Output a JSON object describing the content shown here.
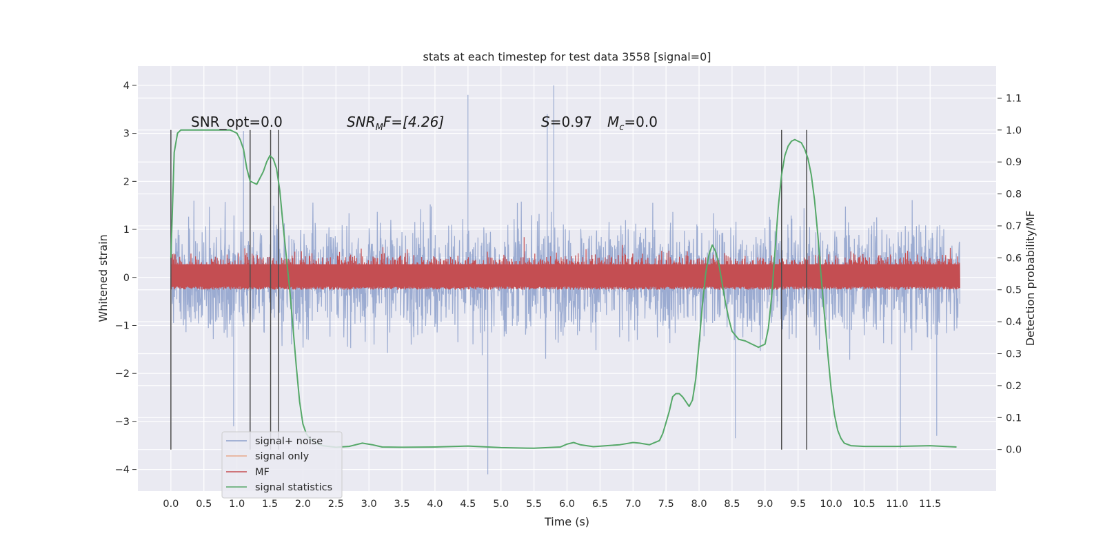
{
  "chart_data": {
    "type": "line",
    "title": "stats at each timestep for test data 3558 [signal=0]",
    "xlabel": "Time (s)",
    "ylabel": "Whitened strain",
    "y2label": "Detection probability/MF",
    "xlim": [
      -0.5,
      12.5
    ],
    "ylim": [
      -4.45,
      4.4
    ],
    "y2lim": [
      -0.13,
      1.2
    ],
    "x_ticks": [
      0.0,
      0.5,
      1.0,
      1.5,
      2.0,
      2.5,
      3.0,
      3.5,
      4.0,
      4.5,
      5.0,
      5.5,
      6.0,
      6.5,
      7.0,
      7.5,
      8.0,
      8.5,
      9.0,
      9.5,
      10.0,
      10.5,
      11.0,
      11.5
    ],
    "y_ticks": [
      -4,
      -3,
      -2,
      -1,
      0,
      1,
      2,
      3,
      4
    ],
    "y2_ticks": [
      0.0,
      0.1,
      0.2,
      0.3,
      0.4,
      0.5,
      0.6,
      0.7,
      0.8,
      0.9,
      1.0,
      1.1
    ],
    "grid": true,
    "legend_position": "lower-left",
    "annotations": {
      "snr_opt": "SNR_opt=0.0",
      "snr_mf_sym": "SNR",
      "snr_mf_sub": "M",
      "snr_mf_rest": "F=[4.26]",
      "stat_s_sym": "S",
      "stat_s_val": "=0.97",
      "stat_mc_sym": "M",
      "stat_mc_sub": "c",
      "stat_mc_val": "=0.0"
    },
    "markers_x": [
      0.0,
      1.2,
      1.51,
      1.63,
      9.25,
      9.63
    ],
    "series": [
      {
        "name": "signal+ noise",
        "color": "#8da0cb",
        "x_range": [
          0.0,
          11.95
        ],
        "envelope_mean": 0.0,
        "envelope_sigma": 0.9,
        "typical_range": [
          -2.2,
          2.2
        ],
        "extremes": [
          [
            0.95,
            -3.1
          ],
          [
            1.1,
            3.05
          ],
          [
            1.2,
            -3.15
          ],
          [
            4.5,
            3.8
          ],
          [
            4.8,
            -4.1
          ],
          [
            5.8,
            4.0
          ],
          [
            5.7,
            3.4
          ],
          [
            8.55,
            -3.35
          ],
          [
            11.05,
            -3.55
          ],
          [
            11.6,
            -3.3
          ]
        ]
      },
      {
        "name": "signal only",
        "color": "#e8a88a",
        "x": [
          0.0,
          11.95
        ],
        "y": [
          0.0,
          0.0
        ]
      },
      {
        "name": "MF",
        "color": "#c44e52",
        "axis": "y2",
        "x_range": [
          0.0,
          11.95
        ],
        "band": [
          0.5,
          0.58
        ],
        "peaks": [
          [
            5.35,
            0.665
          ],
          [
            1.12,
            0.63
          ],
          [
            10.3,
            0.62
          ]
        ]
      },
      {
        "name": "signal statistics",
        "color": "#55a868",
        "axis": "y2",
        "x": [
          0.0,
          0.05,
          0.1,
          0.15,
          0.2,
          0.3,
          0.4,
          0.5,
          0.6,
          0.7,
          0.8,
          0.9,
          1.0,
          1.05,
          1.1,
          1.15,
          1.2,
          1.3,
          1.35,
          1.4,
          1.45,
          1.5,
          1.55,
          1.6,
          1.65,
          1.7,
          1.75,
          1.8,
          1.85,
          1.9,
          1.95,
          2.0,
          2.05,
          2.1,
          2.2,
          2.3,
          2.5,
          2.7,
          2.9,
          3.05,
          3.2,
          3.5,
          4.0,
          4.5,
          5.0,
          5.5,
          5.9,
          6.0,
          6.1,
          6.2,
          6.4,
          6.8,
          7.0,
          7.1,
          7.25,
          7.4,
          7.45,
          7.5,
          7.55,
          7.6,
          7.65,
          7.7,
          7.75,
          7.8,
          7.85,
          7.9,
          7.95,
          8.0,
          8.05,
          8.1,
          8.15,
          8.2,
          8.25,
          8.3,
          8.35,
          8.4,
          8.45,
          8.5,
          8.6,
          8.7,
          8.8,
          8.9,
          9.0,
          9.05,
          9.1,
          9.15,
          9.2,
          9.25,
          9.3,
          9.35,
          9.4,
          9.45,
          9.5,
          9.55,
          9.6,
          9.65,
          9.7,
          9.75,
          9.8,
          9.85,
          9.9,
          9.95,
          10.0,
          10.05,
          10.1,
          10.15,
          10.2,
          10.3,
          10.5,
          11.0,
          11.5,
          11.9
        ],
        "y": [
          0.6,
          0.93,
          0.99,
          1.0,
          1.0,
          1.0,
          1.0,
          1.0,
          1.0,
          1.0,
          1.0,
          1.0,
          0.99,
          0.97,
          0.94,
          0.88,
          0.84,
          0.83,
          0.85,
          0.87,
          0.9,
          0.92,
          0.91,
          0.88,
          0.81,
          0.7,
          0.6,
          0.5,
          0.38,
          0.26,
          0.15,
          0.08,
          0.05,
          0.035,
          0.02,
          0.012,
          0.007,
          0.01,
          0.02,
          0.015,
          0.008,
          0.007,
          0.008,
          0.011,
          0.006,
          0.004,
          0.008,
          0.017,
          0.022,
          0.015,
          0.009,
          0.015,
          0.022,
          0.02,
          0.015,
          0.028,
          0.05,
          0.085,
          0.12,
          0.165,
          0.175,
          0.175,
          0.165,
          0.15,
          0.135,
          0.155,
          0.22,
          0.33,
          0.45,
          0.55,
          0.61,
          0.64,
          0.62,
          0.58,
          0.52,
          0.46,
          0.41,
          0.37,
          0.345,
          0.34,
          0.33,
          0.32,
          0.33,
          0.38,
          0.48,
          0.62,
          0.76,
          0.86,
          0.92,
          0.95,
          0.965,
          0.97,
          0.965,
          0.96,
          0.94,
          0.91,
          0.86,
          0.78,
          0.67,
          0.54,
          0.42,
          0.3,
          0.19,
          0.11,
          0.06,
          0.035,
          0.02,
          0.012,
          0.01,
          0.01,
          0.012,
          0.008
        ]
      }
    ]
  }
}
